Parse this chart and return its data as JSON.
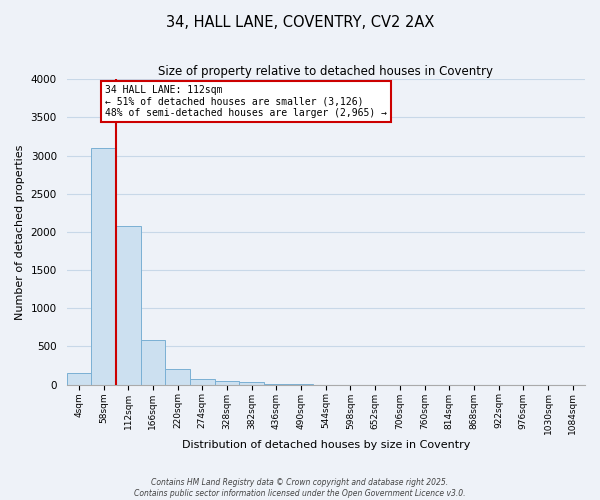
{
  "title": "34, HALL LANE, COVENTRY, CV2 2AX",
  "subtitle": "Size of property relative to detached houses in Coventry",
  "xlabel": "Distribution of detached houses by size in Coventry",
  "ylabel": "Number of detached properties",
  "bar_labels": [
    "4sqm",
    "58sqm",
    "112sqm",
    "166sqm",
    "220sqm",
    "274sqm",
    "328sqm",
    "382sqm",
    "436sqm",
    "490sqm",
    "544sqm",
    "598sqm",
    "652sqm",
    "706sqm",
    "760sqm",
    "814sqm",
    "868sqm",
    "922sqm",
    "976sqm",
    "1030sqm",
    "1084sqm"
  ],
  "bar_values": [
    155,
    3100,
    2080,
    580,
    210,
    75,
    45,
    30,
    5,
    5,
    0,
    0,
    0,
    0,
    0,
    0,
    0,
    0,
    0,
    0,
    0
  ],
  "bar_color": "#cce0f0",
  "bar_edge_color": "#7ab0d4",
  "vline_x": 2,
  "vline_color": "#cc0000",
  "ylim": [
    0,
    4000
  ],
  "yticks": [
    0,
    500,
    1000,
    1500,
    2000,
    2500,
    3000,
    3500,
    4000
  ],
  "annotation_title": "34 HALL LANE: 112sqm",
  "annotation_line1": "← 51% of detached houses are smaller (3,126)",
  "annotation_line2": "48% of semi-detached houses are larger (2,965) →",
  "annotation_box_color": "#ffffff",
  "annotation_box_edge": "#cc0000",
  "background_color": "#eef2f8",
  "grid_color": "#c8d8e8",
  "footer1": "Contains HM Land Registry data © Crown copyright and database right 2025.",
  "footer2": "Contains public sector information licensed under the Open Government Licence v3.0."
}
